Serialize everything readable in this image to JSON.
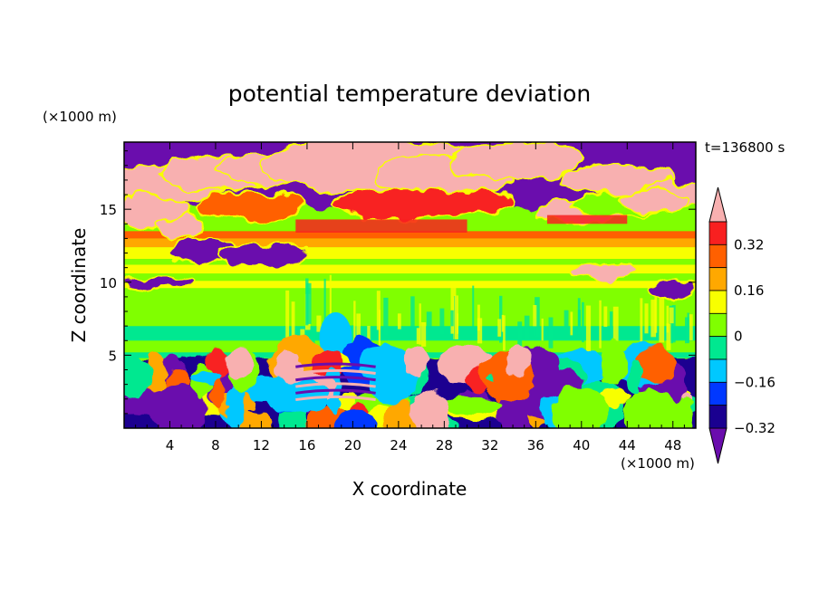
{
  "chart_data": {
    "type": "heatmap",
    "title": "potential temperature deviation",
    "time_label": "t=136800 s",
    "xlabel": "X coordinate",
    "ylabel": "Z coordinate",
    "x_unit": "(×1000 m)",
    "y_unit": "(×1000 m)",
    "xlim": [
      0,
      50
    ],
    "ylim": [
      0,
      19.6
    ],
    "x_ticks": [
      4,
      8,
      12,
      16,
      20,
      24,
      28,
      32,
      36,
      40,
      44,
      48
    ],
    "y_ticks": [
      5,
      10,
      15
    ],
    "grid": false,
    "legend": "right",
    "colorbar": {
      "levels": [
        -0.4,
        -0.32,
        -0.24,
        -0.16,
        -0.08,
        0,
        0.08,
        0.16,
        0.24,
        0.32,
        0.4
      ],
      "tick_labels": [
        "0.32",
        "0.16",
        "0",
        "−0.16",
        "−0.32"
      ],
      "tick_values": [
        0.32,
        0.16,
        0,
        -0.16,
        -0.32
      ],
      "colors": [
        "#6a0dad",
        "#1a0090",
        "#0038ff",
        "#00c8ff",
        "#00e890",
        "#80ff00",
        "#f8ff00",
        "#ffa800",
        "#ff6000",
        "#f82020",
        "#f8b0b0"
      ],
      "extend": "both"
    },
    "field_description_layers": {
      "surface_layer_z": [
        0,
        4.8
      ],
      "stable_layer_z": [
        4.8,
        13.5
      ],
      "upper_layer_z": [
        13.5,
        19.6
      ]
    }
  }
}
